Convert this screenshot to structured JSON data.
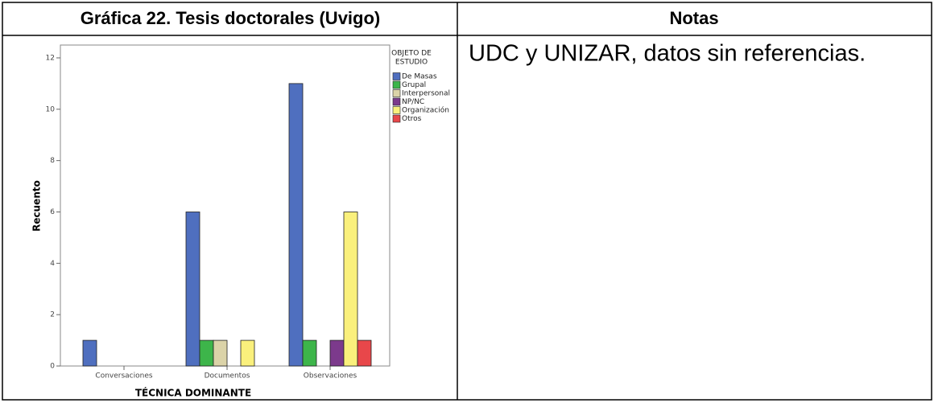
{
  "table": {
    "headers": [
      "Gráfica 22. Tesis doctorales (Uvigo)",
      "Notas"
    ],
    "notes": "UDC y UNIZAR, datos sin referencias."
  },
  "chart_data": {
    "type": "bar",
    "categories": [
      "Conversaciones",
      "Documentos",
      "Observaciones"
    ],
    "series": [
      {
        "name": "De Masas",
        "color": "#4f6fbf",
        "values": [
          1,
          6,
          11
        ]
      },
      {
        "name": "Grupal",
        "color": "#3db54a",
        "values": [
          0,
          1,
          1
        ]
      },
      {
        "name": "Interpersonal",
        "color": "#dbd3a8",
        "values": [
          0,
          1,
          0
        ]
      },
      {
        "name": "NP/NC",
        "color": "#7c3a8c",
        "values": [
          0,
          0,
          1
        ]
      },
      {
        "name": "Organización",
        "color": "#faf07c",
        "values": [
          0,
          1,
          6
        ]
      },
      {
        "name": "Otros",
        "color": "#e8474a",
        "values": [
          0,
          0,
          1
        ]
      }
    ],
    "xlabel": "TÉCNICA DOMINANTE",
    "ylabel": "Recuento",
    "legend_title": [
      "OBJETO DE",
      "ESTUDIO"
    ],
    "ylim": [
      0,
      12.5
    ],
    "yticks": [
      0,
      2,
      4,
      6,
      8,
      10,
      12
    ]
  }
}
